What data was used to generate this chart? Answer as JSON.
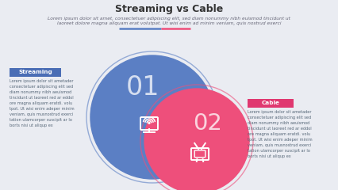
{
  "title": "Streaming vs Cable",
  "subtitle_line1": "Lorem ipsum dolor sit amet, consectetuer adipiscing elit, sed diam nonummy nibh euismod tincidunt ut",
  "subtitle_line2": "laoreet dolore magna aliquam erat volutpat. Ut wisi enim ad minim veniam, quis nostrud exerci",
  "bg_color": "#eaecf2",
  "circle1_color": "#5b7fc4",
  "circle2_color": "#ee4f7b",
  "num1": "01",
  "num2": "02",
  "label1": "Streaming",
  "label2": "Cable",
  "label1_bg": "#4a6db5",
  "label2_bg": "#e03870",
  "divider_color1": "#5b7fc4",
  "divider_color2": "#ee4f7b",
  "lorem_left": "Lorem ipsum dolor sit ametader\nconsectetuer adipiscing elit sed\ndiam nonummy nibh aeuismod\ntincidunt ut laoreet red ar eddol\nore magna aliquam eratdi. volu\ntpot. Ut wisi enim adeper minim\nveniam, quis musnostrud exerci\ntation ulamcorper suscipit ar lo\nborts nisi ut aliqup ex",
  "lorem_right": "Lorem ipsum dolor sit ametader\nconsectetuer adipiscing elit sed\ndiam nonummy nibh aeuismod\ntincidunt ut laoreet red ar eddol\nore magna aliquam eratdi. volu\ntpot. Ut wisi enim adeper minim\nveniam, quis musnostrud exerci\ntation ulamcorper suscipit ar lo\nborts nisi ut aliqup ex",
  "title_fontsize": 9,
  "subtitle_fontsize": 4.2,
  "text_color": "#333333"
}
